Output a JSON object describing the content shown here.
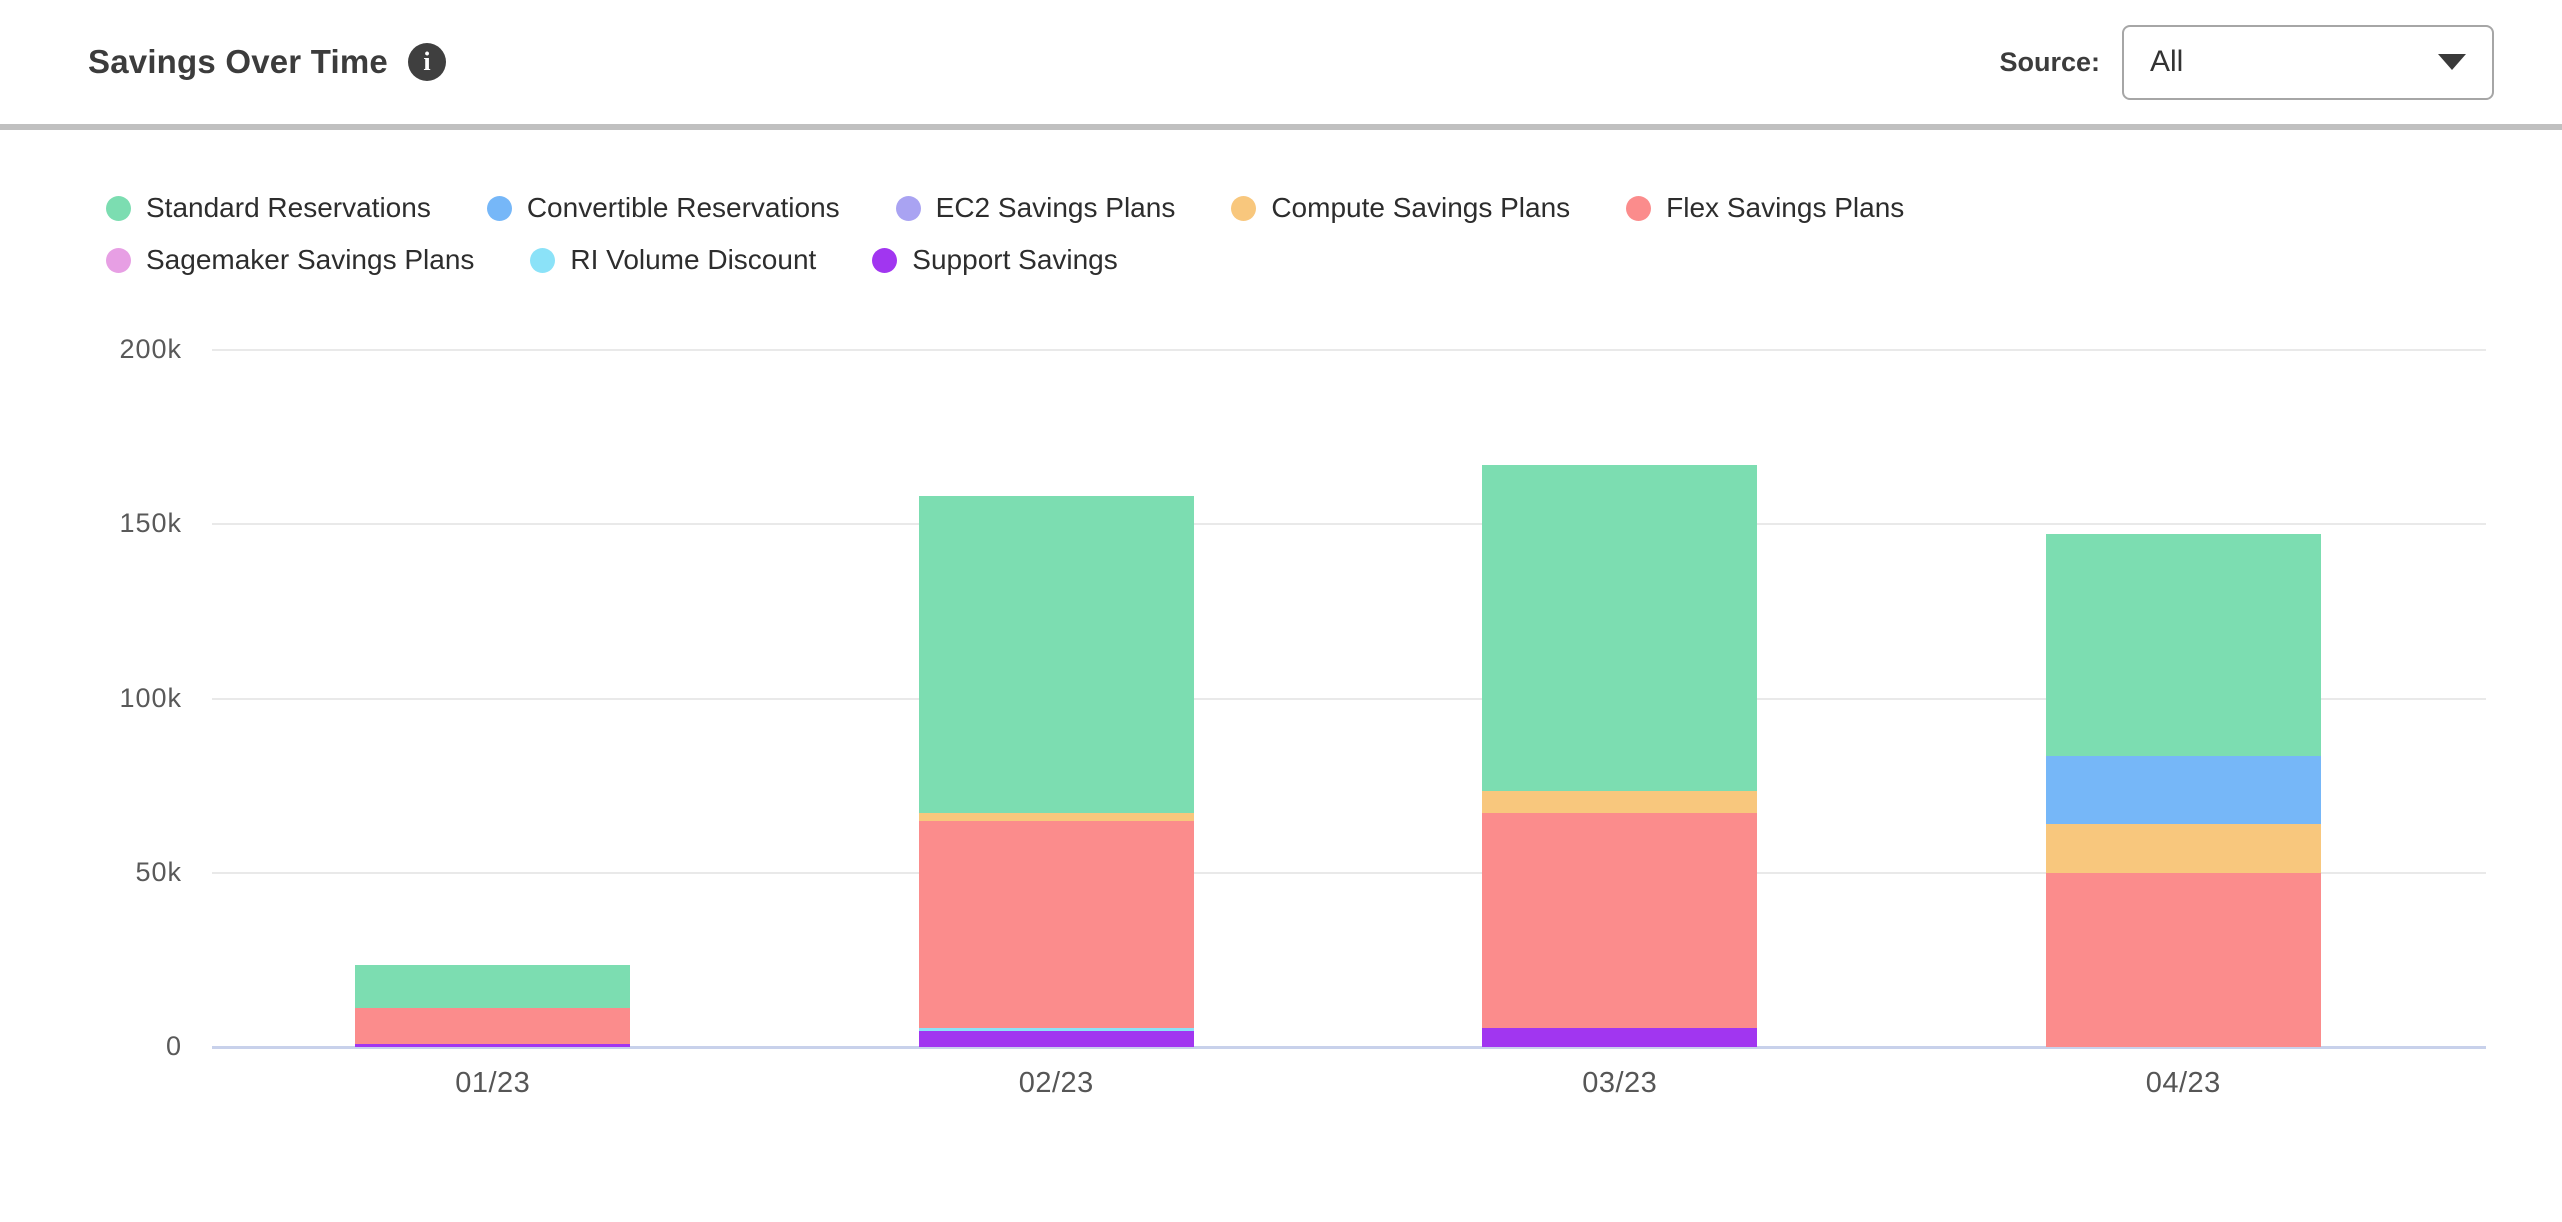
{
  "header": {
    "title": "Savings Over Time",
    "info_icon_glyph": "i",
    "source_label": "Source:",
    "source_value": "All"
  },
  "legend": {
    "row_break_after": 5
  },
  "chart_data": {
    "type": "bar",
    "stacked": true,
    "title": "Savings Over Time",
    "categories": [
      "01/23",
      "02/23",
      "03/23",
      "04/23"
    ],
    "value_unit": "thousands",
    "ylim": [
      0,
      200
    ],
    "y_tick_values": [
      0,
      50,
      100,
      150,
      200
    ],
    "y_tick_labels": [
      "0",
      "50k",
      "100k",
      "150k",
      "200k"
    ],
    "grid": "horizontal",
    "legend_position": "top",
    "series": [
      {
        "name": "Standard Reservations",
        "color": "#7CDDB1",
        "values": [
          12.3,
          91.0,
          93.5,
          63.6
        ]
      },
      {
        "name": "Convertible Reservations",
        "color": "#76B7F8",
        "values": [
          0,
          0,
          0,
          19.6
        ]
      },
      {
        "name": "EC2 Savings Plans",
        "color": "#A9A3F2",
        "values": [
          0,
          0,
          0,
          0
        ]
      },
      {
        "name": "Compute Savings Plans",
        "color": "#F8C77D",
        "values": [
          0,
          2.3,
          6.4,
          14.0
        ]
      },
      {
        "name": "Flex Savings Plans",
        "color": "#FB8C8C",
        "values": [
          10.2,
          59.3,
          61.7,
          50.0
        ]
      },
      {
        "name": "Sagemaker Savings Plans",
        "color": "#E79FE4",
        "values": [
          0,
          0,
          0,
          0
        ]
      },
      {
        "name": "RI Volume Discount",
        "color": "#8BE2F8",
        "values": [
          0,
          0.9,
          0,
          0
        ]
      },
      {
        "name": "Support Savings",
        "color": "#A136F0",
        "values": [
          1.0,
          4.6,
          5.4,
          0
        ]
      }
    ],
    "stack_order_bottom_to_top": [
      "Support Savings",
      "RI Volume Discount",
      "Sagemaker Savings Plans",
      "Flex Savings Plans",
      "Compute Savings Plans",
      "EC2 Savings Plans",
      "Convertible Reservations",
      "Standard Reservations"
    ],
    "totals": [
      23.5,
      158.1,
      167.0,
      147.2
    ]
  }
}
